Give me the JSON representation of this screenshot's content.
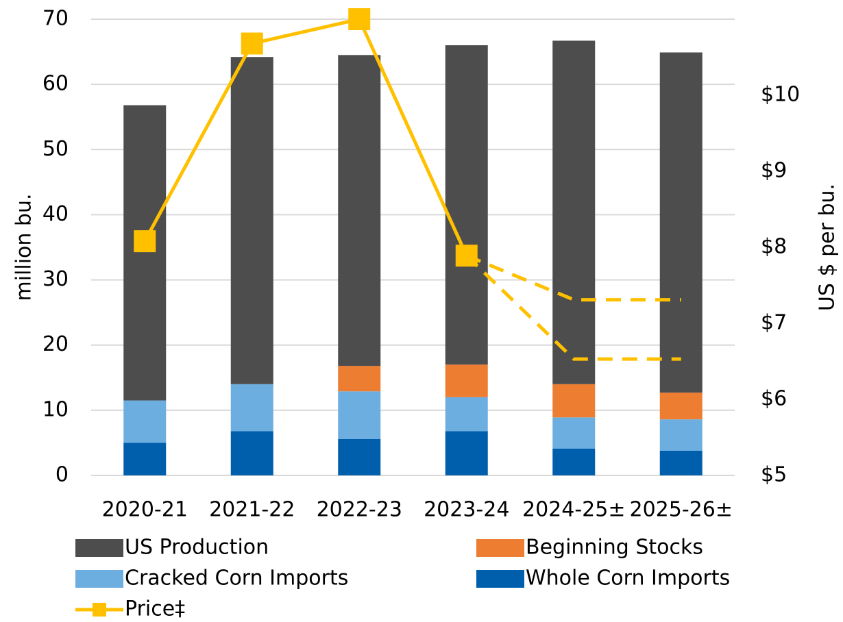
{
  "chart_data": {
    "type": "stacked_bar_line",
    "categories": [
      "2020-21",
      "2021-22",
      "2022-23",
      "2023-24",
      "2024-25±",
      "2025-26±"
    ],
    "ylabel": "million bu.",
    "y2label": "US $ per bu.",
    "ylim": [
      0,
      70
    ],
    "yticks": [
      0,
      10,
      20,
      30,
      40,
      50,
      60,
      70
    ],
    "y2lim": [
      5,
      11
    ],
    "y2ticks": [
      {
        "value": 5,
        "label": "$5"
      },
      {
        "value": 6,
        "label": "$6"
      },
      {
        "value": 7,
        "label": "$7"
      },
      {
        "value": 8,
        "label": "$8"
      },
      {
        "value": 9,
        "label": "$9"
      },
      {
        "value": 10,
        "label": "$10"
      }
    ],
    "grid": true,
    "legend": "bottom",
    "series": [
      {
        "name": "Whole Corn Imports",
        "color": "#005fad",
        "values": [
          5.0,
          6.8,
          5.6,
          6.8,
          4.1,
          3.8
        ]
      },
      {
        "name": "Cracked Corn Imports",
        "color": "#6daee0",
        "values": [
          6.5,
          7.2,
          7.3,
          5.2,
          4.8,
          4.8
        ]
      },
      {
        "name": "Beginning Stocks",
        "color": "#ed7d31",
        "values": [
          0,
          0,
          3.9,
          5.0,
          5.1,
          4.1
        ]
      },
      {
        "name": "US Production",
        "color": "#4d4d4d",
        "values": [
          45.3,
          50.2,
          47.7,
          49.0,
          52.7,
          52.2
        ]
      },
      {
        "name": "Price‡",
        "color": "#ffc000",
        "type": "line",
        "axis": "y2",
        "marker": "square",
        "values": [
          8.08,
          10.68,
          11.0,
          7.89,
          null,
          null
        ]
      },
      {
        "color": "#ffc000",
        "type": "line",
        "axis": "y2",
        "dashed": true,
        "values": [
          null,
          null,
          null,
          7.89,
          7.31,
          7.31
        ]
      },
      {
        "color": "#ffc000",
        "type": "line",
        "axis": "y2",
        "dashed": true,
        "values": [
          null,
          null,
          null,
          7.89,
          6.53,
          6.53
        ]
      }
    ]
  }
}
